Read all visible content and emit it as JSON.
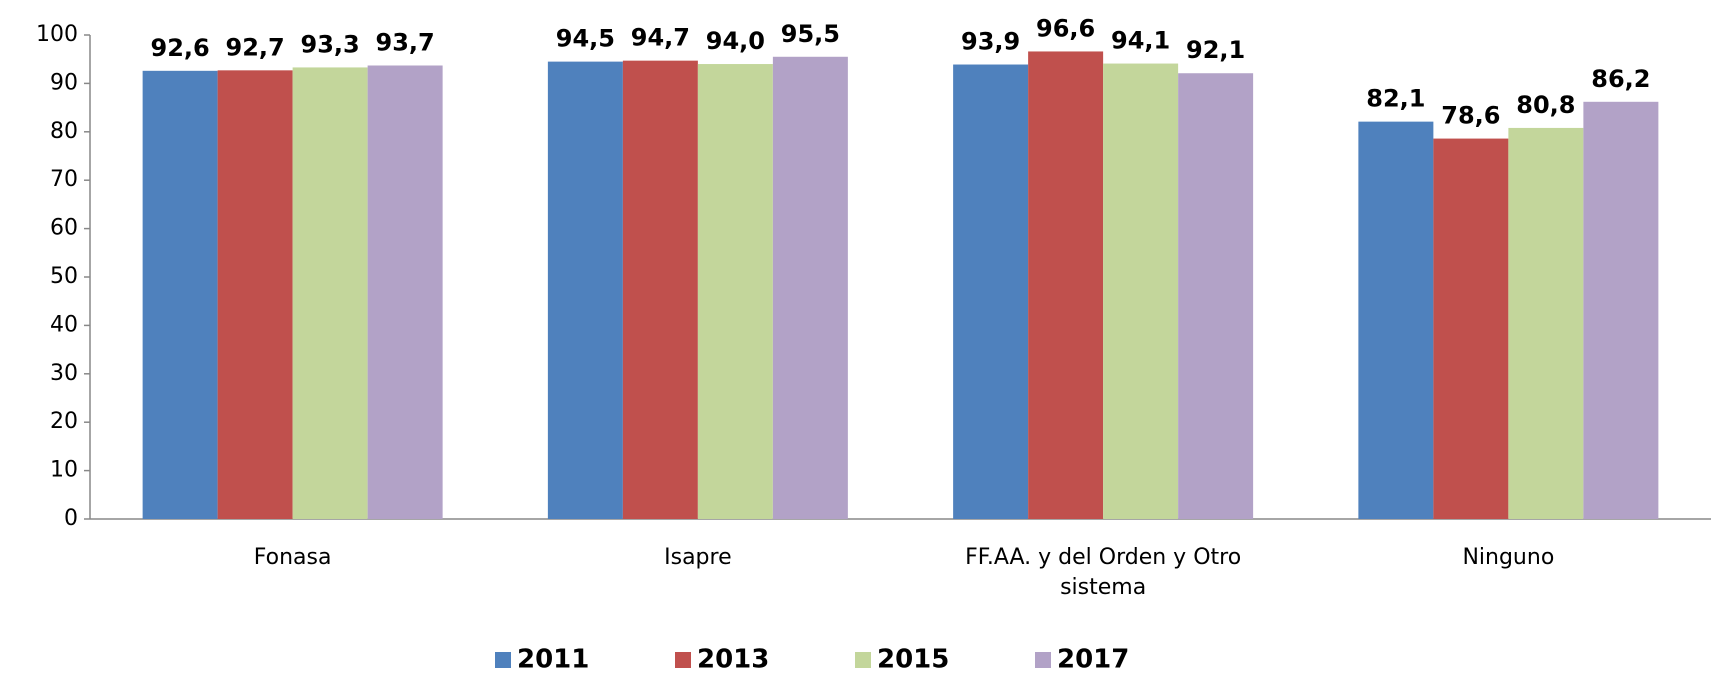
{
  "chart_data": {
    "type": "bar",
    "categories": [
      "Fonasa",
      "Isapre",
      "FF.AA. y del Orden y Otro sistema",
      "Ninguno"
    ],
    "series": [
      {
        "name": "2011",
        "color": "#4f81bd",
        "values": [
          92.6,
          94.5,
          93.9,
          82.1
        ],
        "value_labels": [
          "92,6",
          "94,5",
          "93,9",
          "82,1"
        ]
      },
      {
        "name": "2013",
        "color": "#c0504d",
        "values": [
          92.7,
          94.7,
          96.6,
          78.6
        ],
        "value_labels": [
          "92,7",
          "94,7",
          "96,6",
          "78,6"
        ]
      },
      {
        "name": "2015",
        "color": "#c3d69b",
        "values": [
          93.3,
          94.0,
          94.1,
          80.8
        ],
        "value_labels": [
          "93,3",
          "94,0",
          "94,1",
          "80,8"
        ]
      },
      {
        "name": "2017",
        "color": "#b2a2c7",
        "values": [
          93.7,
          95.5,
          92.1,
          86.2
        ],
        "value_labels": [
          "93,7",
          "95,5",
          "92,1",
          "86,2"
        ]
      }
    ],
    "ylim": [
      0,
      100
    ],
    "yticks": [
      0,
      10,
      20,
      30,
      40,
      50,
      60,
      70,
      80,
      90,
      100
    ],
    "legend": "bottom"
  }
}
